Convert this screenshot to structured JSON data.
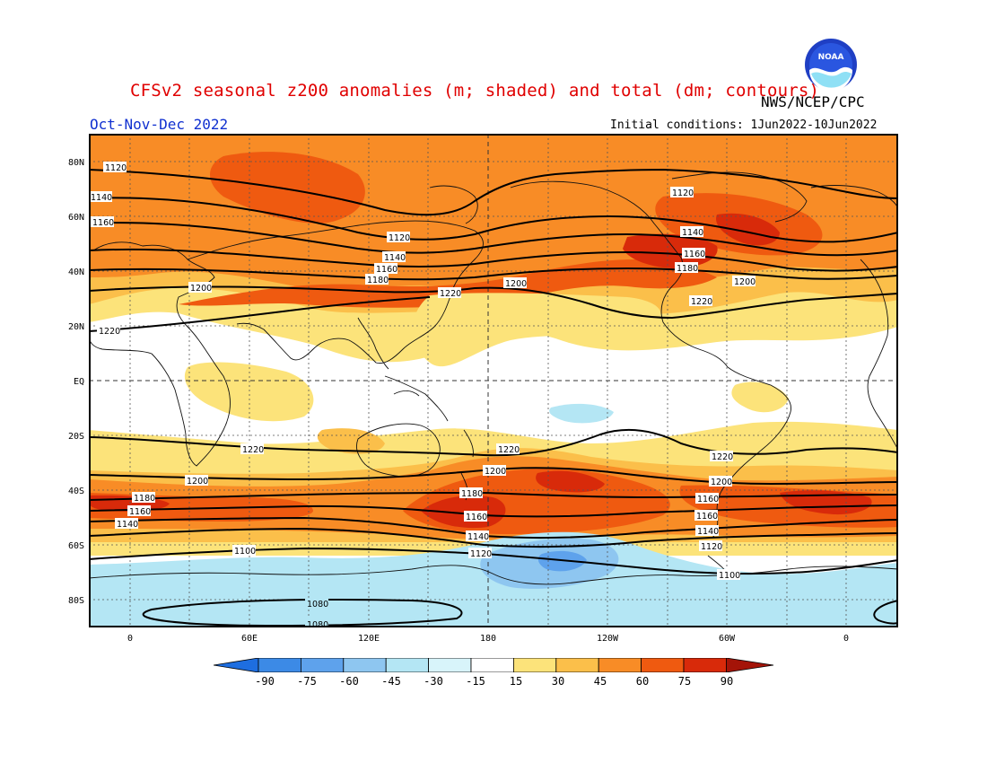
{
  "header": {
    "title": "CFSv2 seasonal z200 anomalies (m; shaded) and total (dm; contours)",
    "agency": "NWS/NCEP/CPC",
    "season": "Oct-Nov-Dec 2022",
    "initial_conditions": "Initial conditions: 1Jun2022-10Jun2022",
    "logo_text": "NOAA"
  },
  "colors": {
    "title": "#e00000",
    "season": "#1030d0",
    "anom_neg_90": "#1e6ee0",
    "anom_neg_75": "#3c8ae6",
    "anom_neg_60": "#5ea2ec",
    "anom_neg_45": "#8ec6f0",
    "anom_neg_30": "#b4e6f4",
    "anom_neutral": "#ffffff",
    "anom_15_30": "#fce37a",
    "anom_30_45": "#fbbf4a",
    "anom_45_60": "#f88c26",
    "anom_60_75": "#ef5a10",
    "anom_75_90": "#d82a0a",
    "anom_90": "#a41408"
  },
  "map": {
    "lat_labels": [
      "80N",
      "60N",
      "40N",
      "20N",
      "EQ",
      "20S",
      "40S",
      "60S",
      "80S"
    ],
    "lon_labels": [
      "0",
      "60E",
      "120E",
      "180",
      "120W",
      "60W",
      "0"
    ],
    "contour_labels_nh": [
      "1120",
      "1140",
      "1160",
      "1120",
      "1140",
      "1160",
      "1180",
      "1200",
      "1220",
      "1200",
      "1120",
      "1140",
      "1160",
      "1180",
      "1200",
      "1220",
      "1220"
    ],
    "contour_labels_sh": [
      "1220",
      "1200",
      "1180",
      "1160",
      "1140",
      "1220",
      "1200",
      "1180",
      "1160",
      "1140",
      "1120",
      "1220",
      "1200",
      "1160",
      "1160",
      "1140",
      "1120",
      "1100",
      "1100",
      "1080",
      "1080"
    ]
  },
  "colorbar": {
    "labels": [
      "-90",
      "-75",
      "-60",
      "-45",
      "-30",
      "-15",
      "15",
      "30",
      "45",
      "60",
      "75",
      "90"
    ]
  }
}
